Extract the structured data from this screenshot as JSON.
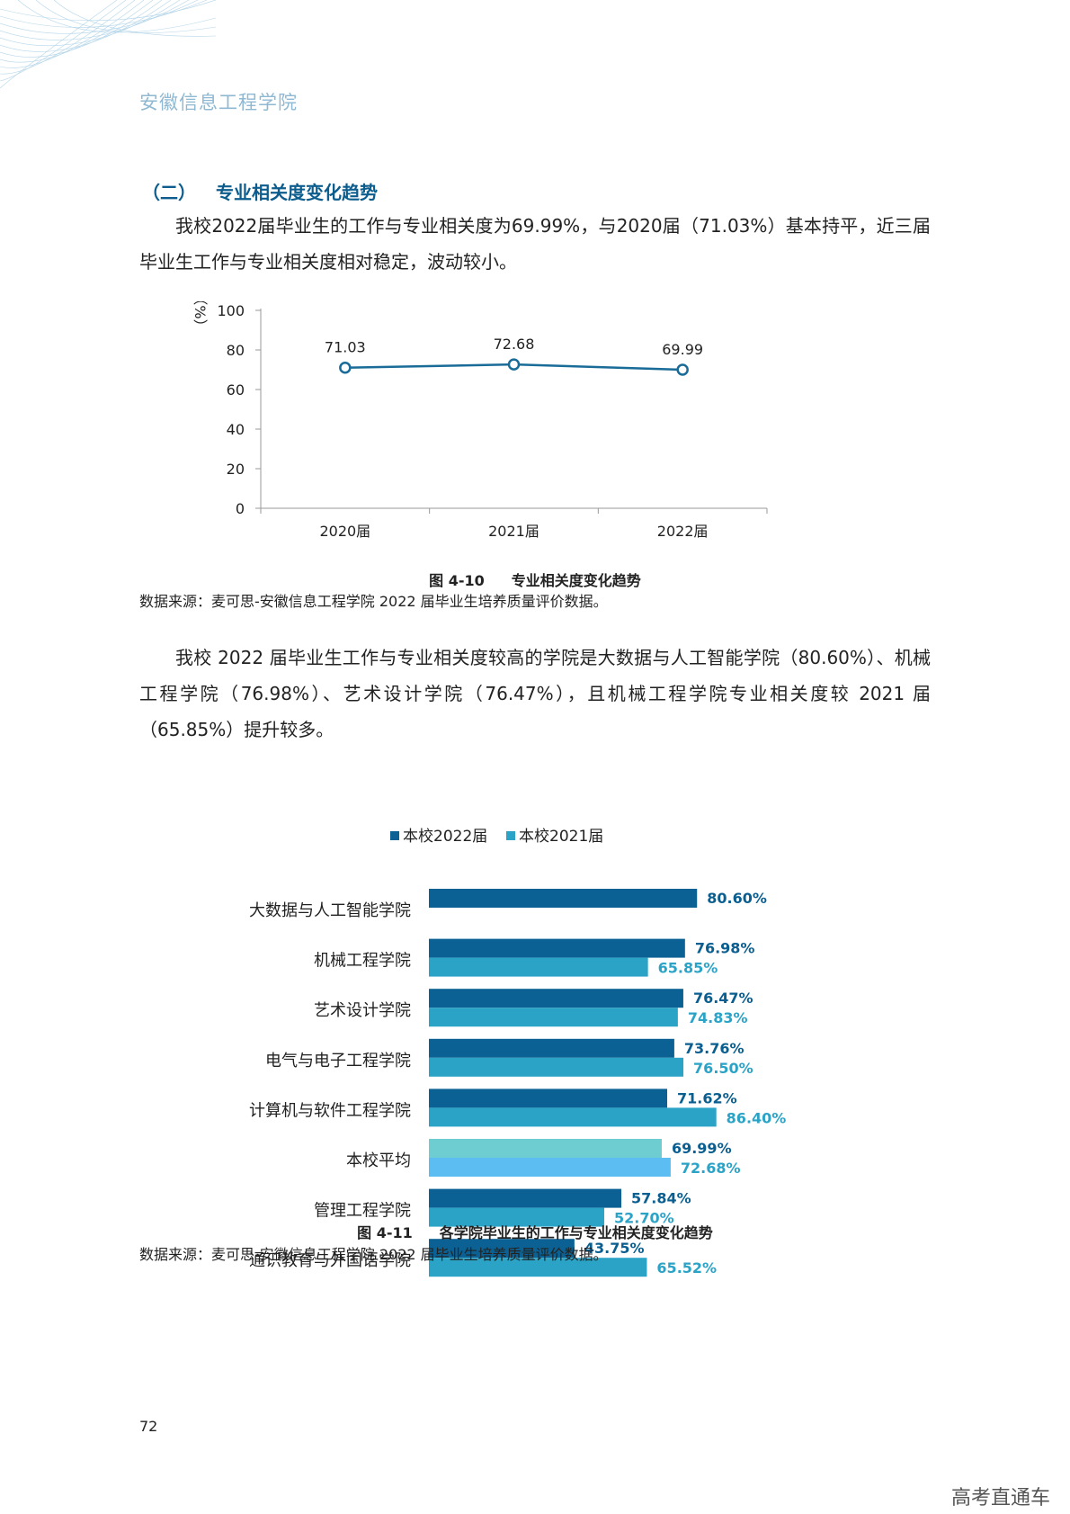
{
  "header": {
    "school": "安徽信息工程学院"
  },
  "section": {
    "number": "（二）",
    "title": "专业相关度变化趋势"
  },
  "para1": "我校2022届毕业生的工作与专业相关度为69.99%，与2020届（71.03%）基本持平，近三届毕业生工作与专业相关度相对稳定，波动较小。",
  "fig1": {
    "number": "图 4-10",
    "title": "专业相关度变化趋势"
  },
  "source1": "数据来源：麦可思-安徽信息工程学院 2022 届毕业生培养质量评价数据。",
  "para2": "我校 2022 届毕业生工作与专业相关度较高的学院是大数据与人工智能学院（80.60%）、机械工程学院（76.98%）、艺术设计学院（76.47%），且机械工程学院专业相关度较 2021 届（65.85%）提升较多。",
  "fig2": {
    "number": "图 4-11",
    "title": "各学院毕业生的工作与专业相关度变化趋势"
  },
  "source2": "数据来源：麦可思-安徽信息工程学院 2022 届毕业生培养质量评价数据。",
  "page_number": "72",
  "watermark": "高考直通车",
  "chart_data": [
    {
      "type": "line",
      "categories": [
        "2020届",
        "2021届",
        "2022届"
      ],
      "series": [
        {
          "values": [
            71.03,
            72.68,
            69.99
          ],
          "labels": [
            "71.03",
            "72.68",
            "69.99"
          ],
          "color": "#1a6c98"
        }
      ],
      "ylabel": "%",
      "ylim": [
        0,
        100
      ],
      "yticks": [
        "0",
        "20",
        "40",
        "60",
        "80",
        "100"
      ]
    },
    {
      "type": "bar",
      "orientation": "horizontal",
      "categories": [
        "大数据与人工智能学院",
        "机械工程学院",
        "艺术设计学院",
        "电气与电子工程学院",
        "计算机与软件工程学院",
        "本校平均",
        "管理工程学院",
        "通识教育与外国语学院"
      ],
      "series": [
        {
          "name": "本校2022届",
          "color": "#0b6193",
          "values": [
            80.6,
            76.98,
            76.47,
            73.76,
            71.62,
            69.99,
            57.84,
            43.75
          ],
          "labels": [
            "80.60%",
            "76.98%",
            "76.47%",
            "73.76%",
            "71.62%",
            "69.99%",
            "57.84%",
            "43.75%"
          ]
        },
        {
          "name": "本校2021届",
          "color": "#2ba3c7",
          "values": [
            null,
            65.85,
            74.83,
            76.5,
            86.4,
            72.68,
            52.7,
            65.52
          ],
          "labels": [
            "",
            "65.85%",
            "74.83%",
            "76.50%",
            "86.40%",
            "72.68%",
            "52.70%",
            "65.52%"
          ]
        }
      ],
      "highlight": {
        "category": "本校平均",
        "colors": [
          "#6dcdd0",
          "#5bbdf2"
        ]
      },
      "legend": "top"
    }
  ]
}
